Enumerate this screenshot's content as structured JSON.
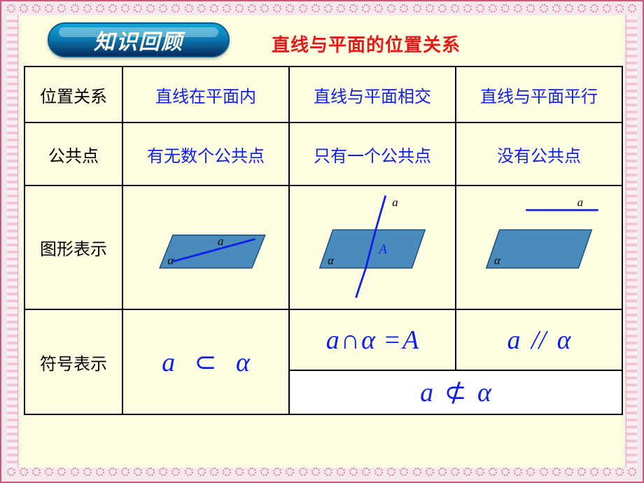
{
  "badge": {
    "text": "知识回顾"
  },
  "subtitle": "直线与平面的位置关系",
  "labels": {
    "row1": "位置关系",
    "row2": "公共点",
    "row3": "图形表示",
    "row4": "符号表示"
  },
  "cols": {
    "c1": {
      "position": "直线在平面内",
      "points": "有无数个公共点"
    },
    "c2": {
      "position": "直线与平面相交",
      "points": "只有一个公共点"
    },
    "c3": {
      "position": "直线与平面平行",
      "points": "没有公共点"
    }
  },
  "diagram_style": {
    "plane_fill": "#4a8bbd",
    "plane_stroke": "#1a4a72",
    "line_color": "#1020e8",
    "line_width": 3,
    "label_color": "#000000",
    "label_font": "italic 18px 'Times New Roman', serif",
    "alpha_label": "α",
    "line_label": "a",
    "intersect_label": "A"
  },
  "formulas": {
    "inside_a": "a",
    "inside_sym": "⊂",
    "inside_alpha": "α",
    "intersect_a": "a",
    "intersect_cap": "∩",
    "intersect_alpha": "α",
    "intersect_eq": "=",
    "intersect_A": "A",
    "parallel_a": "a",
    "parallel_sym": "//",
    "parallel_alpha": "α",
    "notsubset_a": "a",
    "notsubset_sym": "⊄",
    "notsubset_alpha": "α"
  }
}
